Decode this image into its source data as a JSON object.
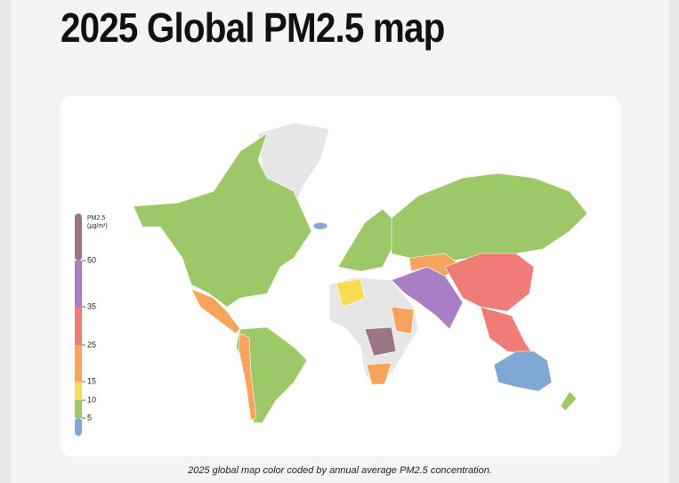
{
  "title": "2025 Global PM2.5 map",
  "legend": {
    "label_line1": "PM2.5",
    "label_line2": "(μg/m³)",
    "ticks": [
      5,
      10,
      15,
      25,
      35,
      50
    ],
    "colors": [
      "#7fa8d4",
      "#9dc867",
      "#f9dc50",
      "#f7a35c",
      "#f07c78",
      "#a87fc4",
      "#9a7686"
    ]
  },
  "caption": "2025 global map color coded by annual average PM2.5 concentration."
}
